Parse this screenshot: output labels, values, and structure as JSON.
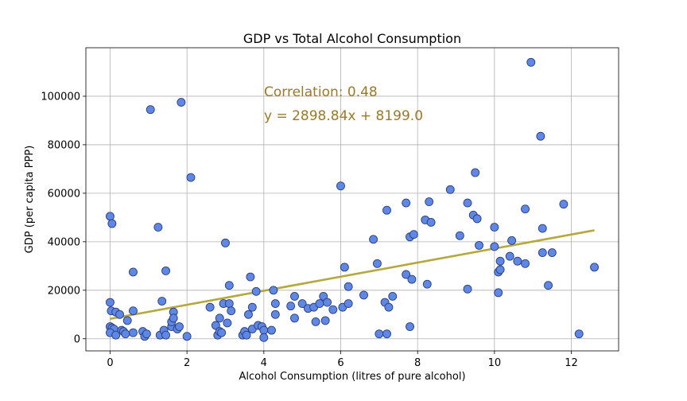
{
  "chart_data": {
    "type": "scatter",
    "title": "GDP vs Total Alcohol Consumption",
    "xlabel": "Alcohol Consumption (litres of pure alcohol)",
    "ylabel": "GDP (per capita PPP)",
    "xlim": [
      -0.63,
      13.23
    ],
    "ylim": [
      -5000,
      120000
    ],
    "xticks": [
      0,
      2,
      4,
      6,
      8,
      10,
      12
    ],
    "yticks": [
      0,
      20000,
      40000,
      60000,
      80000,
      100000
    ],
    "grid": true,
    "colors": {
      "points": "#5f87e6",
      "point_edge": "#2a3f7a",
      "fit_line": "#b5a83c",
      "annotation": "#9a7a2a"
    },
    "annotations": [
      "Correlation:  0.48",
      "y = 2898.84x + 8199.0"
    ],
    "fit": {
      "slope": 2898.84,
      "intercept": 8199.0,
      "x_range": [
        0,
        12.6
      ]
    },
    "points": [
      [
        0,
        50500
      ],
      [
        0.05,
        47500
      ],
      [
        0.0,
        15000
      ],
      [
        0.03,
        11500
      ],
      [
        0.15,
        11000
      ],
      [
        0.25,
        10000
      ],
      [
        0.0,
        5000
      ],
      [
        0.05,
        4500
      ],
      [
        0.1,
        4000
      ],
      [
        0.0,
        2500
      ],
      [
        0.15,
        1500
      ],
      [
        0.3,
        3500
      ],
      [
        0.35,
        3000
      ],
      [
        0.4,
        2000
      ],
      [
        0.45,
        7500
      ],
      [
        0.6,
        11500
      ],
      [
        0.6,
        2500
      ],
      [
        0.6,
        27500
      ],
      [
        0.85,
        3000
      ],
      [
        0.9,
        1000
      ],
      [
        0.95,
        2000
      ],
      [
        1.05,
        94500
      ],
      [
        1.25,
        46000
      ],
      [
        1.3,
        1500
      ],
      [
        1.4,
        3500
      ],
      [
        1.45,
        1500
      ],
      [
        1.35,
        15500
      ],
      [
        1.45,
        28000
      ],
      [
        1.6,
        5000
      ],
      [
        1.6,
        7000
      ],
      [
        1.65,
        11000
      ],
      [
        1.65,
        8500
      ],
      [
        1.75,
        4000
      ],
      [
        1.8,
        5000
      ],
      [
        1.85,
        97500
      ],
      [
        2.0,
        1000
      ],
      [
        2.1,
        66500
      ],
      [
        2.6,
        13000
      ],
      [
        2.75,
        5500
      ],
      [
        2.8,
        1500
      ],
      [
        2.85,
        8500
      ],
      [
        2.85,
        3000
      ],
      [
        2.9,
        2500
      ],
      [
        2.95,
        14500
      ],
      [
        3.0,
        39500
      ],
      [
        3.05,
        6500
      ],
      [
        3.1,
        14500
      ],
      [
        3.1,
        22000
      ],
      [
        3.15,
        11500
      ],
      [
        3.45,
        1500
      ],
      [
        3.5,
        3000
      ],
      [
        3.55,
        1500
      ],
      [
        3.6,
        10000
      ],
      [
        3.65,
        25500
      ],
      [
        3.7,
        4000
      ],
      [
        3.7,
        13000
      ],
      [
        3.8,
        19500
      ],
      [
        3.85,
        5500
      ],
      [
        3.95,
        5000
      ],
      [
        4.0,
        3500
      ],
      [
        4.0,
        500
      ],
      [
        4.2,
        3500
      ],
      [
        4.25,
        20000
      ],
      [
        4.3,
        14500
      ],
      [
        4.3,
        10000
      ],
      [
        4.7,
        13500
      ],
      [
        4.8,
        17500
      ],
      [
        4.8,
        8500
      ],
      [
        5.0,
        14500
      ],
      [
        5.15,
        12500
      ],
      [
        5.3,
        13000
      ],
      [
        5.35,
        7000
      ],
      [
        5.45,
        14500
      ],
      [
        5.55,
        17500
      ],
      [
        5.6,
        7500
      ],
      [
        5.65,
        15000
      ],
      [
        5.8,
        12000
      ],
      [
        6.0,
        63000
      ],
      [
        6.05,
        13000
      ],
      [
        6.1,
        29500
      ],
      [
        6.2,
        14500
      ],
      [
        6.2,
        21500
      ],
      [
        6.6,
        18000
      ],
      [
        6.85,
        41000
      ],
      [
        6.95,
        31000
      ],
      [
        7.0,
        2000
      ],
      [
        7.15,
        15000
      ],
      [
        7.2,
        53000
      ],
      [
        7.2,
        2000
      ],
      [
        7.25,
        13000
      ],
      [
        7.35,
        17500
      ],
      [
        7.7,
        56000
      ],
      [
        7.7,
        26500
      ],
      [
        7.8,
        5000
      ],
      [
        7.8,
        42000
      ],
      [
        7.85,
        24500
      ],
      [
        7.9,
        43000
      ],
      [
        8.2,
        49000
      ],
      [
        8.25,
        22500
      ],
      [
        8.3,
        56500
      ],
      [
        8.35,
        48000
      ],
      [
        8.85,
        61500
      ],
      [
        9.1,
        42500
      ],
      [
        9.3,
        56000
      ],
      [
        9.3,
        20500
      ],
      [
        9.45,
        51000
      ],
      [
        9.5,
        68500
      ],
      [
        9.55,
        49500
      ],
      [
        9.6,
        38500
      ],
      [
        10.0,
        46000
      ],
      [
        10.0,
        38000
      ],
      [
        10.1,
        19000
      ],
      [
        10.1,
        27500
      ],
      [
        10.15,
        28500
      ],
      [
        10.15,
        32000
      ],
      [
        10.4,
        34000
      ],
      [
        10.45,
        40500
      ],
      [
        10.6,
        32000
      ],
      [
        10.8,
        53500
      ],
      [
        10.8,
        31000
      ],
      [
        10.95,
        114000
      ],
      [
        11.2,
        83500
      ],
      [
        11.25,
        45500
      ],
      [
        11.25,
        35500
      ],
      [
        11.4,
        22000
      ],
      [
        11.5,
        35500
      ],
      [
        11.8,
        55500
      ],
      [
        12.2,
        2000
      ],
      [
        12.6,
        29500
      ]
    ]
  }
}
